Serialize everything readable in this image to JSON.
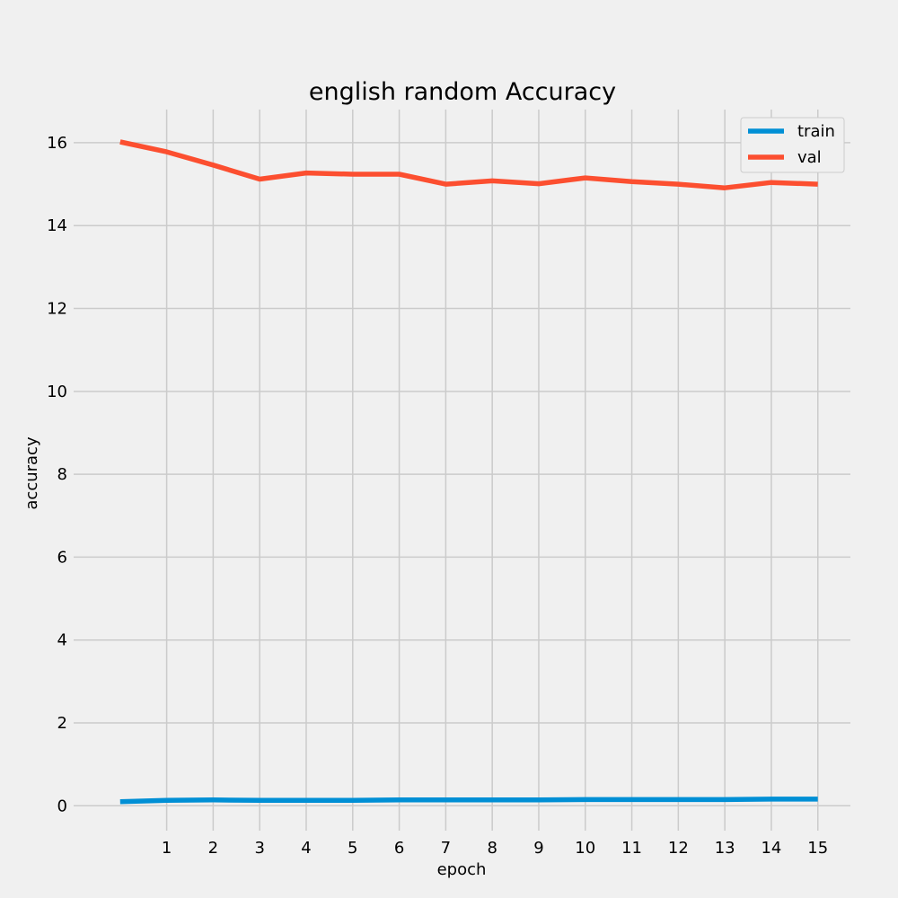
{
  "chart_data": {
    "type": "line",
    "title": "english random Accuracy",
    "xlabel": "epoch",
    "ylabel": "accuracy",
    "x": [
      0,
      1,
      2,
      3,
      4,
      5,
      6,
      7,
      8,
      9,
      10,
      11,
      12,
      13,
      14,
      15
    ],
    "xticks": [
      1,
      2,
      3,
      4,
      5,
      6,
      7,
      8,
      9,
      10,
      11,
      12,
      13,
      14,
      15
    ],
    "yticks": [
      0,
      2,
      4,
      6,
      8,
      10,
      12,
      14,
      16
    ],
    "xlim": [
      -1,
      15.7
    ],
    "ylim": [
      -0.6,
      16.8
    ],
    "grid": true,
    "legend_position": "top-right",
    "series": [
      {
        "name": "train",
        "color": "#008fd5",
        "values": [
          0.1,
          0.13,
          0.14,
          0.13,
          0.13,
          0.13,
          0.14,
          0.14,
          0.14,
          0.14,
          0.15,
          0.15,
          0.15,
          0.15,
          0.16,
          0.16
        ]
      },
      {
        "name": "val",
        "color": "#fc4f30",
        "values": [
          16.02,
          15.78,
          15.46,
          15.12,
          15.27,
          15.24,
          15.24,
          15.0,
          15.08,
          15.01,
          15.15,
          15.06,
          15.0,
          14.91,
          15.04,
          15.0
        ]
      }
    ]
  }
}
